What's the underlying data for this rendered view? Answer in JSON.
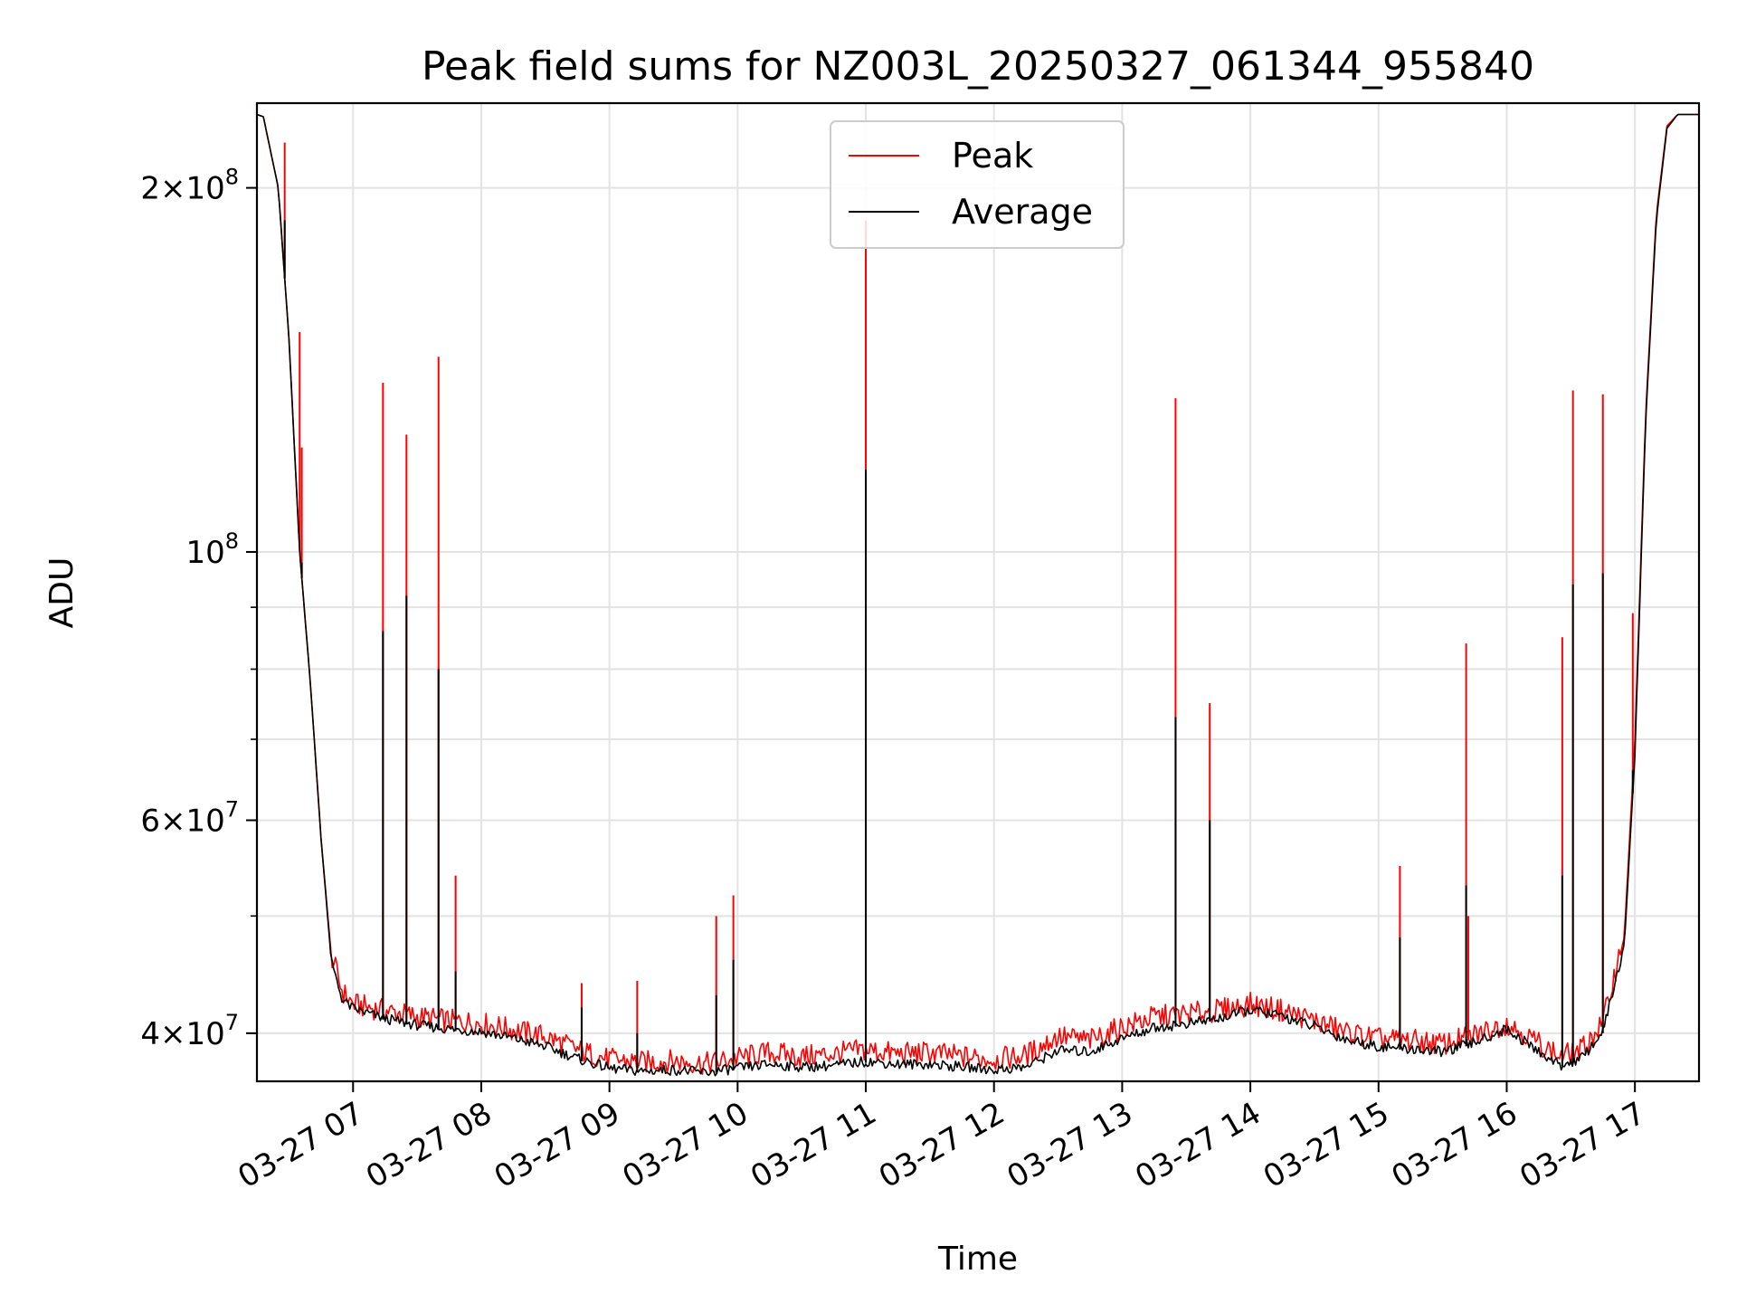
{
  "chart_data": {
    "type": "line",
    "title": "Peak field sums for NZ003L_20250327_061344_955840",
    "xlabel": "Time",
    "ylabel": "ADU",
    "yscale": "log",
    "grid": true,
    "legend": "upper-center",
    "xlim": [
      "03-27 06:15",
      "03-27 17:30"
    ],
    "ylim": [
      36500000,
      235000000
    ],
    "x_ticks": [
      "03-27 07",
      "03-27 08",
      "03-27 09",
      "03-27 10",
      "03-27 11",
      "03-27 12",
      "03-27 13",
      "03-27 14",
      "03-27 15",
      "03-27 16",
      "03-27 17"
    ],
    "y_ticks": [
      {
        "value": 40000000,
        "mantissa": "4",
        "exponent": "7"
      },
      {
        "value": 60000000,
        "mantissa": "6",
        "exponent": "7"
      },
      {
        "value": 100000000,
        "mantissa": "",
        "exponent": "8"
      },
      {
        "value": 200000000,
        "mantissa": "2",
        "exponent": "8"
      }
    ],
    "series": [
      {
        "name": "Peak",
        "color": "#ff0000",
        "x": [
          "03-27 06:15",
          "03-27 06:18",
          "03-27 06:25",
          "03-27 06:30",
          "03-27 06:35",
          "03-27 06:40",
          "03-27 06:45",
          "03-27 06:50",
          "03-27 06:55",
          "03-27 07:00",
          "03-27 07:15",
          "03-27 07:30",
          "03-27 07:45",
          "03-27 08:00",
          "03-27 08:15",
          "03-27 08:30",
          "03-27 08:45",
          "03-27 09:00",
          "03-27 09:15",
          "03-27 09:30",
          "03-27 09:45",
          "03-27 10:00",
          "03-27 10:15",
          "03-27 10:30",
          "03-27 10:45",
          "03-27 11:00",
          "03-27 11:15",
          "03-27 11:30",
          "03-27 11:45",
          "03-27 12:00",
          "03-27 12:15",
          "03-27 12:30",
          "03-27 12:45",
          "03-27 13:00",
          "03-27 13:15",
          "03-27 13:30",
          "03-27 13:45",
          "03-27 14:00",
          "03-27 14:15",
          "03-27 14:30",
          "03-27 14:45",
          "03-27 15:00",
          "03-27 15:15",
          "03-27 15:30",
          "03-27 15:45",
          "03-27 16:00",
          "03-27 16:15",
          "03-27 16:25",
          "03-27 16:35",
          "03-27 16:45",
          "03-27 16:55",
          "03-27 17:00",
          "03-27 17:05",
          "03-27 17:10",
          "03-27 17:15",
          "03-27 17:20",
          "03-27 17:30"
        ],
        "y": [
          230000000,
          229000000,
          200000000,
          150000000,
          100000000,
          78000000,
          58000000,
          46000000,
          43000000,
          42000000,
          41500000,
          41000000,
          40700000,
          40500000,
          40000000,
          39500000,
          38500000,
          37800000,
          37600000,
          37700000,
          37500000,
          37900000,
          38300000,
          38000000,
          38200000,
          38500000,
          38200000,
          38300000,
          38000000,
          37800000,
          38100000,
          39500000,
          39200000,
          40200000,
          41000000,
          41200000,
          41500000,
          42000000,
          41500000,
          40700000,
          39800000,
          39300000,
          39200000,
          38900000,
          39600000,
          40500000,
          39000000,
          38000000,
          38500000,
          40500000,
          48000000,
          70000000,
          130000000,
          190000000,
          225000000,
          230000000,
          230000000
        ],
        "spikes": [
          {
            "x": "03-27 06:28",
            "y": 218000000
          },
          {
            "x": "03-27 06:35",
            "y": 152000000
          },
          {
            "x": "03-27 06:36",
            "y": 122000000
          },
          {
            "x": "03-27 07:14",
            "y": 138000000
          },
          {
            "x": "03-27 07:25",
            "y": 125000000
          },
          {
            "x": "03-27 07:40",
            "y": 145000000
          },
          {
            "x": "03-27 07:48",
            "y": 54000000
          },
          {
            "x": "03-27 08:47",
            "y": 44000000
          },
          {
            "x": "03-27 09:13",
            "y": 44200000
          },
          {
            "x": "03-27 09:50",
            "y": 50000000
          },
          {
            "x": "03-27 09:58",
            "y": 52000000
          },
          {
            "x": "03-27 11:00",
            "y": 188000000
          },
          {
            "x": "03-27 13:25",
            "y": 134000000
          },
          {
            "x": "03-27 13:41",
            "y": 75000000
          },
          {
            "x": "03-27 15:10",
            "y": 55000000
          },
          {
            "x": "03-27 15:41",
            "y": 84000000
          },
          {
            "x": "03-27 15:42",
            "y": 50000000
          },
          {
            "x": "03-27 16:26",
            "y": 85000000
          },
          {
            "x": "03-27 16:31",
            "y": 136000000
          },
          {
            "x": "03-27 16:45",
            "y": 135000000
          },
          {
            "x": "03-27 16:59",
            "y": 89000000
          }
        ]
      },
      {
        "name": "Average",
        "color": "#000000",
        "x": [
          "03-27 06:15",
          "03-27 06:18",
          "03-27 06:25",
          "03-27 06:30",
          "03-27 06:35",
          "03-27 06:40",
          "03-27 06:45",
          "03-27 06:50",
          "03-27 06:55",
          "03-27 07:00",
          "03-27 07:15",
          "03-27 07:30",
          "03-27 07:45",
          "03-27 08:00",
          "03-27 08:15",
          "03-27 08:30",
          "03-27 08:45",
          "03-27 09:00",
          "03-27 09:15",
          "03-27 09:30",
          "03-27 09:45",
          "03-27 10:00",
          "03-27 10:15",
          "03-27 10:30",
          "03-27 10:45",
          "03-27 11:00",
          "03-27 11:15",
          "03-27 11:30",
          "03-27 11:45",
          "03-27 12:00",
          "03-27 12:15",
          "03-27 12:30",
          "03-27 12:45",
          "03-27 13:00",
          "03-27 13:15",
          "03-27 13:30",
          "03-27 13:45",
          "03-27 14:00",
          "03-27 14:15",
          "03-27 14:30",
          "03-27 14:45",
          "03-27 15:00",
          "03-27 15:15",
          "03-27 15:30",
          "03-27 15:45",
          "03-27 16:00",
          "03-27 16:15",
          "03-27 16:25",
          "03-27 16:35",
          "03-27 16:45",
          "03-27 16:55",
          "03-27 17:00",
          "03-27 17:05",
          "03-27 17:10",
          "03-27 17:15",
          "03-27 17:20",
          "03-27 17:30"
        ],
        "y": [
          230000000,
          229000000,
          200000000,
          150000000,
          100000000,
          78000000,
          58000000,
          45500000,
          42500000,
          41800000,
          41000000,
          40500000,
          40200000,
          40000000,
          39500000,
          38900000,
          38000000,
          37300000,
          37100000,
          37200000,
          37000000,
          37300000,
          37600000,
          37400000,
          37500000,
          37800000,
          37600000,
          37600000,
          37400000,
          37200000,
          37400000,
          38600000,
          38500000,
          39500000,
          40300000,
          40600000,
          41000000,
          41700000,
          41200000,
          40400000,
          39400000,
          38900000,
          38700000,
          38500000,
          39200000,
          40200000,
          38500000,
          37500000,
          38000000,
          40000000,
          47000000,
          68000000,
          128000000,
          188000000,
          224000000,
          230000000,
          230000000
        ],
        "spikes": [
          {
            "x": "03-27 06:28",
            "y": 188000000
          },
          {
            "x": "03-27 06:36",
            "y": 98000000
          },
          {
            "x": "03-27 07:14",
            "y": 86000000
          },
          {
            "x": "03-27 07:25",
            "y": 92000000
          },
          {
            "x": "03-27 07:40",
            "y": 80000000
          },
          {
            "x": "03-27 07:48",
            "y": 45000000
          },
          {
            "x": "03-27 08:47",
            "y": 42000000
          },
          {
            "x": "03-27 09:13",
            "y": 40000000
          },
          {
            "x": "03-27 09:50",
            "y": 43000000
          },
          {
            "x": "03-27 09:58",
            "y": 46000000
          },
          {
            "x": "03-27 11:00",
            "y": 117000000
          },
          {
            "x": "03-27 13:25",
            "y": 73000000
          },
          {
            "x": "03-27 13:41",
            "y": 60000000
          },
          {
            "x": "03-27 15:10",
            "y": 48000000
          },
          {
            "x": "03-27 15:41",
            "y": 53000000
          },
          {
            "x": "03-27 16:26",
            "y": 54000000
          },
          {
            "x": "03-27 16:31",
            "y": 94000000
          },
          {
            "x": "03-27 16:45",
            "y": 96000000
          },
          {
            "x": "03-27 16:59",
            "y": 66000000
          }
        ]
      }
    ]
  }
}
